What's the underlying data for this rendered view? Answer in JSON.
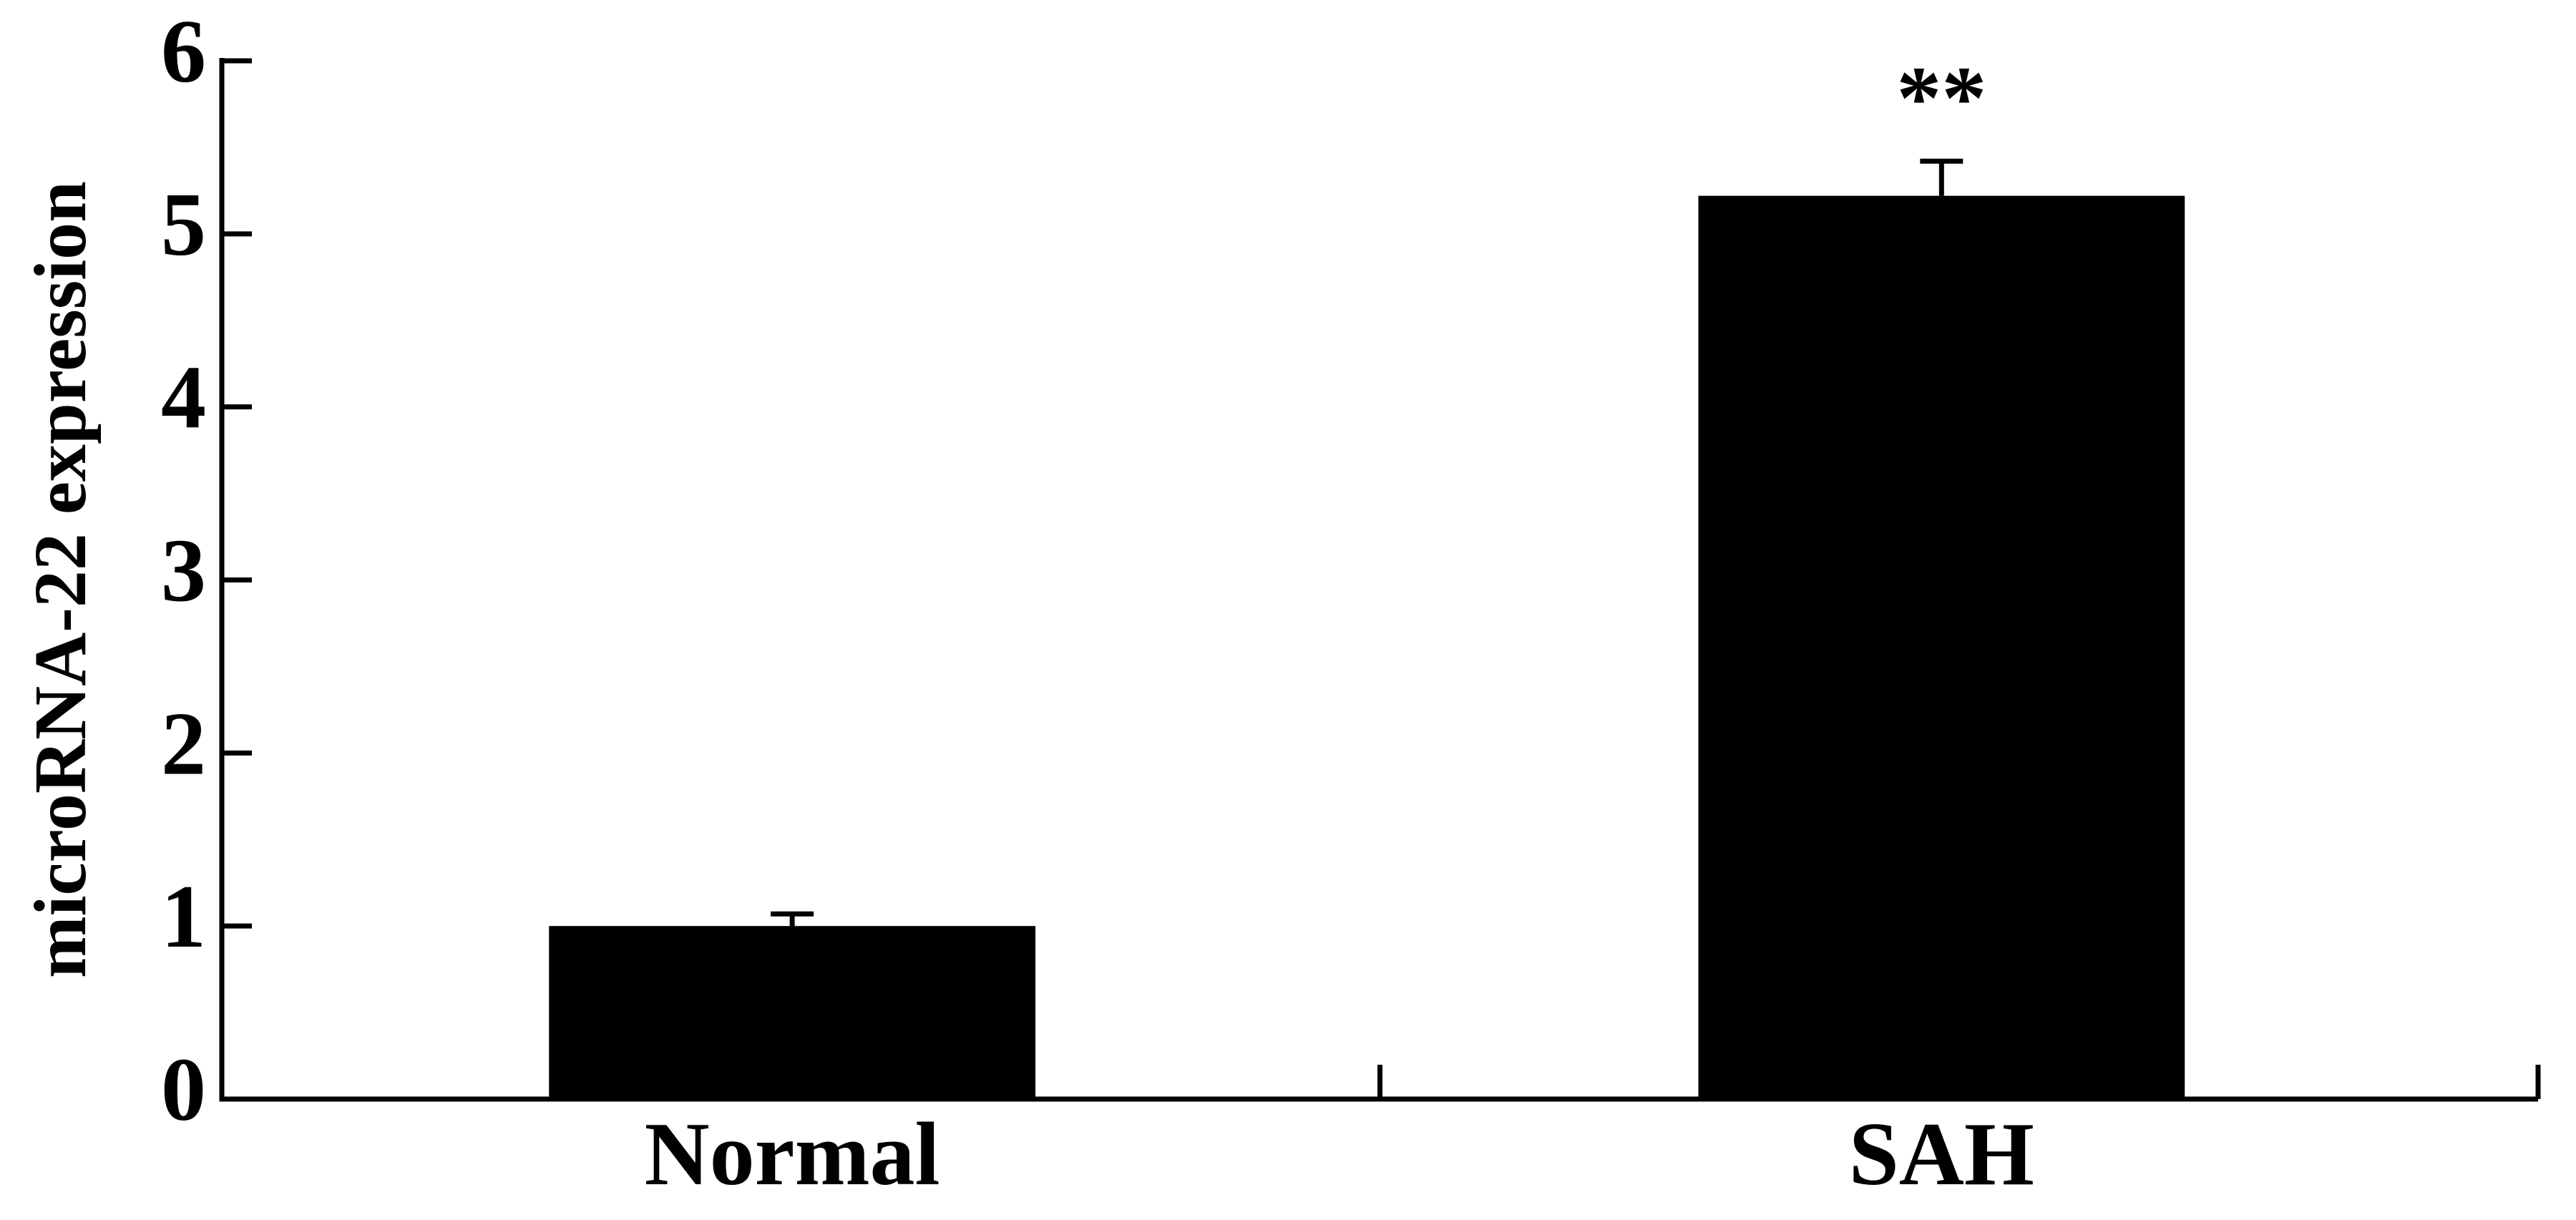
{
  "chart_data": {
    "type": "bar",
    "y_label": "microRNA-22 expression",
    "categories": [
      "Normal",
      "SAH"
    ],
    "values": [
      1.0,
      5.22
    ],
    "errors": [
      0.07,
      0.2
    ],
    "color": "#000000",
    "annotations": [
      {
        "text": "**",
        "x": "SAH"
      }
    ],
    "ylim": [
      0,
      6
    ],
    "yticks": [
      0,
      1,
      2,
      3,
      4,
      5,
      6
    ],
    "grid": false
  }
}
